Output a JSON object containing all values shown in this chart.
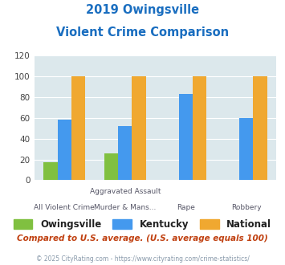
{
  "title_line1": "2019 Owingsville",
  "title_line2": "Violent Crime Comparison",
  "top_labels": [
    "",
    "Aggravated Assault",
    "",
    ""
  ],
  "bot_labels": [
    "All Violent Crime",
    "Murder & Mans...",
    "Rape",
    "Robbery"
  ],
  "series": {
    "Owingsville": [
      17,
      26,
      0,
      0
    ],
    "Kentucky": [
      58,
      52,
      83,
      60
    ],
    "National": [
      100,
      100,
      100,
      100
    ]
  },
  "colors": {
    "Owingsville": "#80c040",
    "Kentucky": "#4499ee",
    "National": "#f0a830"
  },
  "ylim": [
    0,
    120
  ],
  "yticks": [
    0,
    20,
    40,
    60,
    80,
    100,
    120
  ],
  "plot_bg": "#dce8ec",
  "fig_bg": "#ffffff",
  "subtitle_note": "Compared to U.S. average. (U.S. average equals 100)",
  "copyright": "© 2025 CityRating.com - https://www.cityrating.com/crime-statistics/",
  "title_color": "#1a6ec0",
  "note_color": "#c04010",
  "copyright_color": "#8899aa"
}
